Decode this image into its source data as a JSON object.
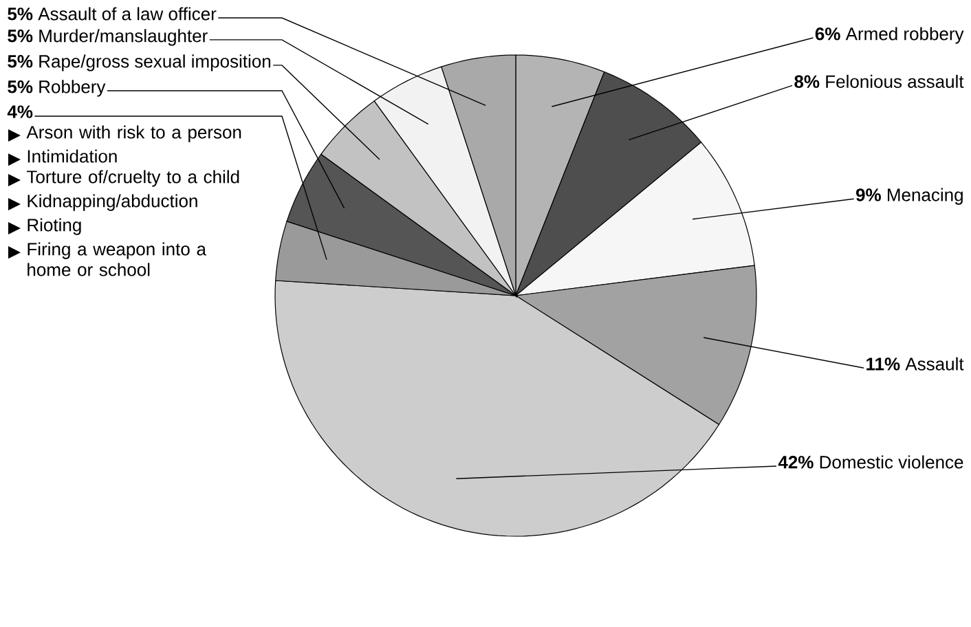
{
  "chart_data": {
    "type": "pie",
    "categories": [
      "Armed robbery",
      "Felonious assault",
      "Menacing",
      "Assault",
      "Domestic violence",
      null,
      "Robbery",
      "Rape/gross sexual imposition",
      "Murder/manslaughter",
      "Assault of a law officer"
    ],
    "values": [
      6,
      8,
      9,
      11,
      42,
      4,
      5,
      5,
      5,
      5
    ],
    "value_labels": [
      "6%",
      "8%",
      "9%",
      "11%",
      "42%",
      "4%",
      "5%",
      "5%",
      "5%",
      "5%"
    ],
    "colors": [
      "#b4b4b4",
      "#4e4e4e",
      "#f6f6f6",
      "#a2a2a2",
      "#cdcdcd",
      "#9a9a9a",
      "#555555",
      "#c2c2c2",
      "#f2f2f2",
      "#a9a9a9"
    ],
    "annotations": [
      "Arson with risk to a person",
      "Intimidation",
      "Torture of/cruelty to a child",
      "Kidnapping/abduction",
      "Rioting",
      "Firing a weapon into a home or school"
    ]
  }
}
